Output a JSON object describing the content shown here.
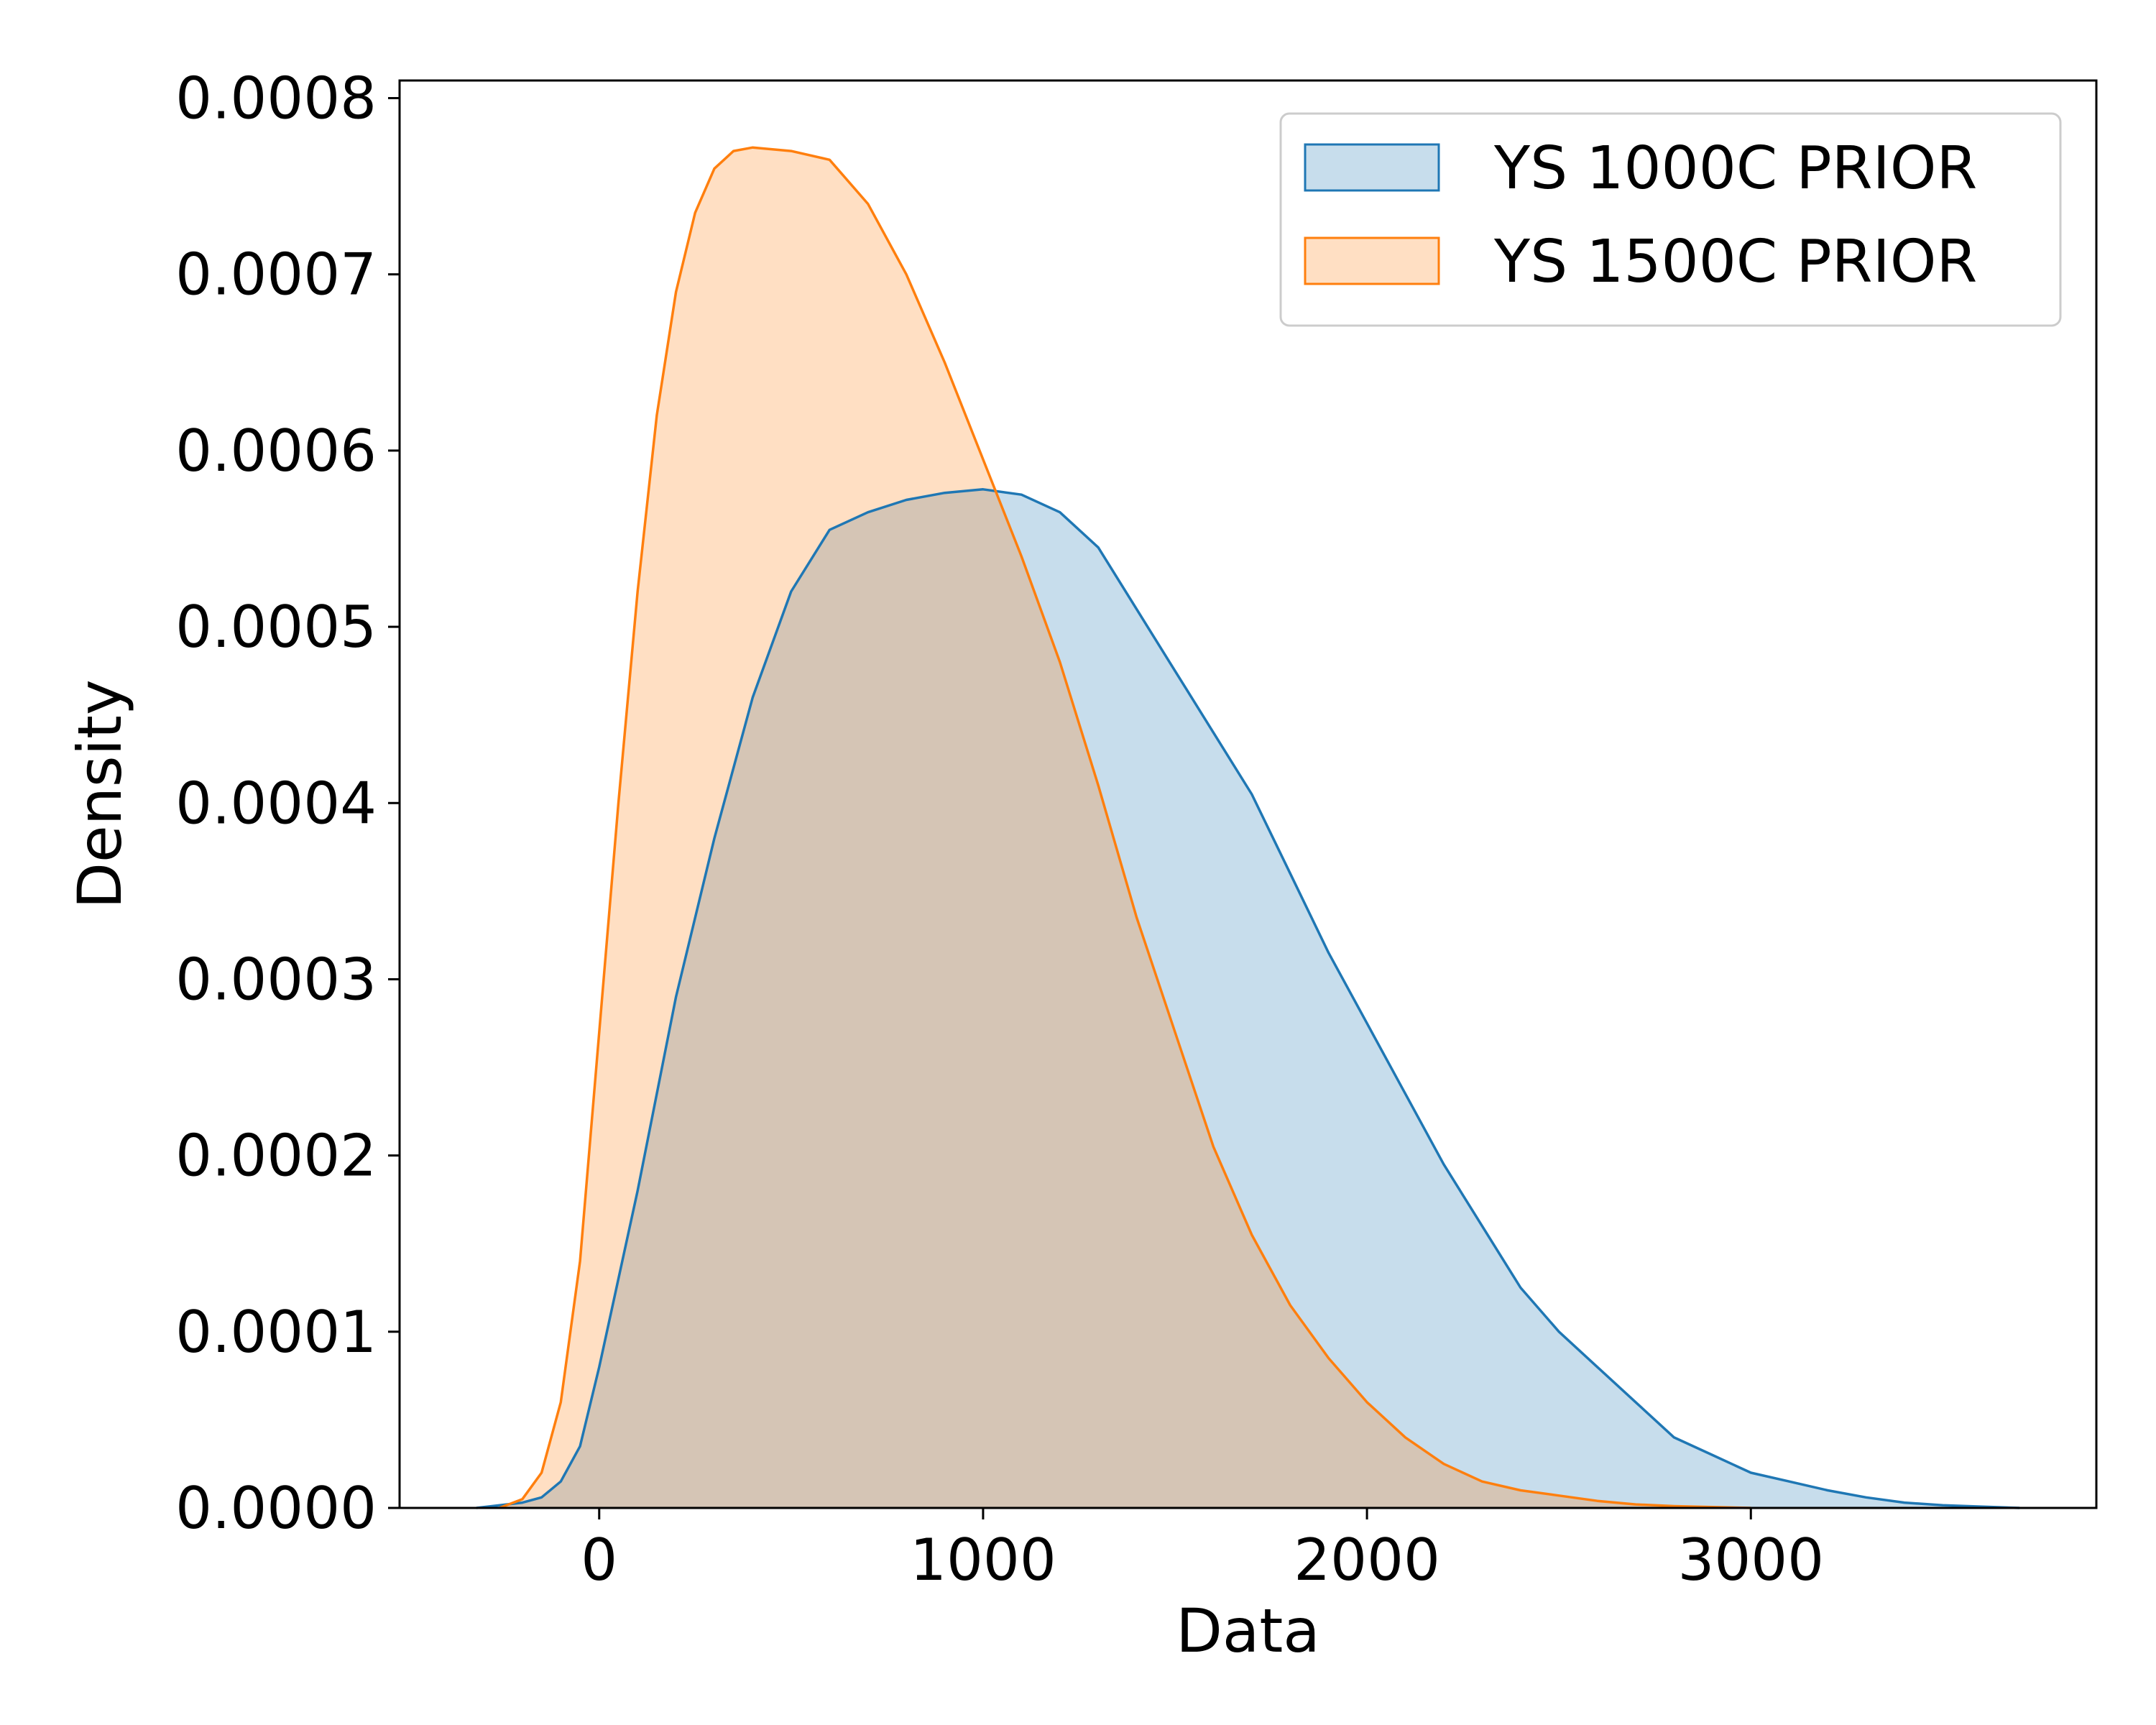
{
  "chart_data": {
    "type": "area",
    "title": "",
    "xlabel": "Data",
    "ylabel": "Density",
    "xlim": [
      -520,
      3900
    ],
    "ylim": [
      0,
      0.00081
    ],
    "x_ticks": [
      0,
      1000,
      2000,
      3000
    ],
    "x_tick_labels": [
      "0",
      "1000",
      "2000",
      "3000"
    ],
    "y_ticks": [
      0,
      0.0001,
      0.0002,
      0.0003,
      0.0004,
      0.0005,
      0.0006,
      0.0007,
      0.0008
    ],
    "y_tick_labels": [
      "0.0000",
      "0.0001",
      "0.0002",
      "0.0003",
      "0.0004",
      "0.0005",
      "0.0006",
      "0.0007",
      "0.0008"
    ],
    "grid": false,
    "legend_position": "top-right",
    "series": [
      {
        "name": "YS 1000C PRIOR",
        "color": "#1f77b4",
        "fill": "#c6dbee",
        "points": [
          [
            -320,
            0
          ],
          [
            -200,
            3e-06
          ],
          [
            -150,
            6e-06
          ],
          [
            -100,
            1.5e-05
          ],
          [
            -50,
            3.5e-05
          ],
          [
            0,
            8e-05
          ],
          [
            100,
            0.00018
          ],
          [
            200,
            0.00029
          ],
          [
            300,
            0.00038
          ],
          [
            400,
            0.00046
          ],
          [
            500,
            0.00052
          ],
          [
            600,
            0.000555
          ],
          [
            700,
            0.000565
          ],
          [
            800,
            0.000572
          ],
          [
            900,
            0.000576
          ],
          [
            1000,
            0.000578
          ],
          [
            1100,
            0.000575
          ],
          [
            1200,
            0.000565
          ],
          [
            1300,
            0.000545
          ],
          [
            1400,
            0.00051
          ],
          [
            1500,
            0.000475
          ],
          [
            1600,
            0.00044
          ],
          [
            1700,
            0.000405
          ],
          [
            1800,
            0.00036
          ],
          [
            1900,
            0.000315
          ],
          [
            2000,
            0.000275
          ],
          [
            2100,
            0.000235
          ],
          [
            2200,
            0.000195
          ],
          [
            2300,
            0.00016
          ],
          [
            2400,
            0.000125
          ],
          [
            2500,
            0.0001
          ],
          [
            2600,
            8e-05
          ],
          [
            2700,
            6e-05
          ],
          [
            2800,
            4e-05
          ],
          [
            2900,
            3e-05
          ],
          [
            3000,
            2e-05
          ],
          [
            3100,
            1.5e-05
          ],
          [
            3200,
            1e-05
          ],
          [
            3300,
            6e-06
          ],
          [
            3400,
            3e-06
          ],
          [
            3500,
            1.5e-06
          ],
          [
            3700,
            0
          ]
        ]
      },
      {
        "name": "YS 1500C PRIOR",
        "color": "#ff7f0e",
        "fill": "#fed9b8",
        "points": [
          [
            -260,
            0
          ],
          [
            -200,
            5e-06
          ],
          [
            -150,
            2e-05
          ],
          [
            -100,
            6e-05
          ],
          [
            -50,
            0.00014
          ],
          [
            0,
            0.00027
          ],
          [
            50,
            0.0004
          ],
          [
            100,
            0.00052
          ],
          [
            150,
            0.00062
          ],
          [
            200,
            0.00069
          ],
          [
            250,
            0.000735
          ],
          [
            300,
            0.00076
          ],
          [
            350,
            0.00077
          ],
          [
            400,
            0.000772
          ],
          [
            500,
            0.00077
          ],
          [
            600,
            0.000765
          ],
          [
            700,
            0.00074
          ],
          [
            800,
            0.0007
          ],
          [
            900,
            0.00065
          ],
          [
            1000,
            0.000595
          ],
          [
            1100,
            0.00054
          ],
          [
            1200,
            0.00048
          ],
          [
            1300,
            0.00041
          ],
          [
            1400,
            0.000335
          ],
          [
            1500,
            0.00027
          ],
          [
            1600,
            0.000205
          ],
          [
            1700,
            0.000155
          ],
          [
            1800,
            0.000115
          ],
          [
            1900,
            8.5e-05
          ],
          [
            2000,
            6e-05
          ],
          [
            2100,
            4e-05
          ],
          [
            2200,
            2.5e-05
          ],
          [
            2300,
            1.5e-05
          ],
          [
            2400,
            1e-05
          ],
          [
            2500,
            7e-06
          ],
          [
            2600,
            4e-06
          ],
          [
            2700,
            2e-06
          ],
          [
            2800,
            1e-06
          ],
          [
            2900,
            5e-07
          ],
          [
            3000,
            0
          ]
        ]
      }
    ]
  }
}
